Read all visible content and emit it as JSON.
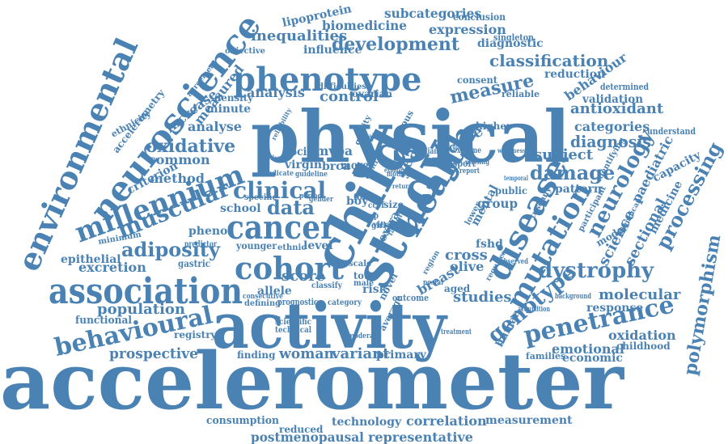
{
  "color": "#4a82b4",
  "words": [
    {
      "id": "accelerometer",
      "text": "accelerometer"
    },
    {
      "id": "activity",
      "text": "activity"
    },
    {
      "id": "physical",
      "text": "physical"
    },
    {
      "id": "phenotype",
      "text": "phenotype"
    },
    {
      "id": "association",
      "text": "association"
    },
    {
      "id": "child",
      "text": "child"
    },
    {
      "id": "study",
      "text": "study"
    },
    {
      "id": "neuroscience",
      "text": "neuroscience"
    },
    {
      "id": "environmental",
      "text": "environmental"
    },
    {
      "id": "cancer",
      "text": "cancer"
    },
    {
      "id": "cohort",
      "text": "cohort"
    },
    {
      "id": "health",
      "text": "health"
    },
    {
      "id": "disease",
      "text": "disease"
    },
    {
      "id": "mutation",
      "text": "mutation"
    },
    {
      "id": "millennium",
      "text": "millennium"
    },
    {
      "id": "behavioural",
      "text": "behavioural"
    },
    {
      "id": "penetrance",
      "text": "penetrance"
    },
    {
      "id": "clinical",
      "text": "clinical"
    },
    {
      "id": "muscular",
      "text": "muscular"
    },
    {
      "id": "adiposity",
      "text": "adiposity"
    },
    {
      "id": "genotype",
      "text": "genotype"
    },
    {
      "id": "dystrophy",
      "text": "dystrophy"
    },
    {
      "id": "damage",
      "text": "damage"
    },
    {
      "id": "neurology",
      "text": "neurology"
    },
    {
      "id": "processing",
      "text": "processing"
    },
    {
      "id": "polymorphism",
      "text": "polymorphism"
    },
    {
      "id": "oxidative",
      "text": "oxidative"
    },
    {
      "id": "development",
      "text": "development"
    },
    {
      "id": "classification",
      "text": "classification"
    },
    {
      "id": "measure",
      "text": "measure"
    },
    {
      "id": "data",
      "text": "data"
    },
    {
      "id": "population",
      "text": "population"
    },
    {
      "id": "variant",
      "text": "variant"
    },
    {
      "id": "woman",
      "text": "woman"
    },
    {
      "id": "molecular",
      "text": "molecular"
    },
    {
      "id": "prospective",
      "text": "prospective"
    },
    {
      "id": "score",
      "text": "score"
    },
    {
      "id": "subject",
      "text": "subject"
    },
    {
      "id": "diagnosis",
      "text": "diagnosis"
    },
    {
      "id": "antioxidant",
      "text": "antioxidant"
    },
    {
      "id": "control",
      "text": "control"
    },
    {
      "id": "analysis",
      "text": "analysis"
    },
    {
      "id": "inequalities",
      "text": "inequalities"
    },
    {
      "id": "biomedicine",
      "text": "biomedicine"
    },
    {
      "id": "expression",
      "text": "expression"
    },
    {
      "id": "subcategories",
      "text": "subcategories"
    },
    {
      "id": "lipoprotein",
      "text": "lipoprotein"
    },
    {
      "id": "conclusion",
      "text": "conclusion"
    },
    {
      "id": "diagnostic",
      "text": "diagnostic"
    },
    {
      "id": "singleton",
      "text": "singleton"
    },
    {
      "id": "influence",
      "text": "influence"
    },
    {
      "id": "objective",
      "text": "objective"
    },
    {
      "id": "reduction",
      "text": "reduction"
    },
    {
      "id": "behaviour",
      "text": "behaviour"
    },
    {
      "id": "validation",
      "text": "validation"
    },
    {
      "id": "determined",
      "text": "determined"
    },
    {
      "id": "categories",
      "text": "categories"
    },
    {
      "id": "understand",
      "text": "understand"
    },
    {
      "id": "paediatric",
      "text": "paediatric"
    },
    {
      "id": "capacity",
      "text": "capacity"
    },
    {
      "id": "sectional",
      "text": "sectional"
    },
    {
      "id": "science",
      "text": "science"
    },
    {
      "id": "medicine",
      "text": "medicine"
    },
    {
      "id": "response",
      "text": "response"
    },
    {
      "id": "oxidation",
      "text": "oxidation"
    },
    {
      "id": "childhood",
      "text": "childhood"
    },
    {
      "id": "emotional",
      "text": "emotional"
    },
    {
      "id": "economic",
      "text": "economic"
    },
    {
      "id": "families",
      "text": "families"
    },
    {
      "id": "measurement",
      "text": "measurement"
    },
    {
      "id": "correlation",
      "text": "correlation"
    },
    {
      "id": "technology",
      "text": "technology"
    },
    {
      "id": "postmenopausal",
      "text": "postmenopausal"
    },
    {
      "id": "representative",
      "text": "representative"
    },
    {
      "id": "consumption",
      "text": "consumption"
    },
    {
      "id": "reduced",
      "text": "reduced"
    },
    {
      "id": "primary",
      "text": "primary"
    },
    {
      "id": "studies",
      "text": "studies"
    },
    {
      "id": "breast",
      "text": "breast"
    },
    {
      "id": "cross",
      "text": "cross"
    },
    {
      "id": "olive",
      "text": "olive"
    },
    {
      "id": "aged",
      "text": "aged"
    },
    {
      "id": "risk",
      "text": "risk"
    },
    {
      "id": "school",
      "text": "school"
    },
    {
      "id": "phenol",
      "text": "phenol"
    },
    {
      "id": "common",
      "text": "common"
    },
    {
      "id": "method",
      "text": "method"
    },
    {
      "id": "criterion",
      "text": "criterion"
    },
    {
      "id": "analyse",
      "text": "analyse"
    },
    {
      "id": "increase",
      "text": "increase"
    },
    {
      "id": "measured",
      "text": "measured"
    },
    {
      "id": "minute",
      "text": "minute"
    },
    {
      "id": "density",
      "text": "density"
    },
    {
      "id": "excretion",
      "text": "excretion"
    },
    {
      "id": "epithelial",
      "text": "epithelial"
    },
    {
      "id": "functional",
      "text": "functional"
    },
    {
      "id": "registry",
      "text": "registry"
    },
    {
      "id": "finding",
      "text": "finding"
    },
    {
      "id": "allele",
      "text": "allele"
    },
    {
      "id": "mvpa",
      "text": "mvpa"
    },
    {
      "id": "social",
      "text": "social"
    },
    {
      "id": "virgin",
      "text": "virgin"
    },
    {
      "id": "brca",
      "text": "brca"
    },
    {
      "id": "fshd",
      "text": "fshd"
    },
    {
      "id": "public",
      "text": "public"
    },
    {
      "id": "pattern",
      "text": "pattern"
    },
    {
      "id": "group",
      "text": "group"
    },
    {
      "id": "active",
      "text": "active"
    },
    {
      "id": "year",
      "text": "year"
    },
    {
      "id": "mental",
      "text": "mental"
    },
    {
      "id": "level",
      "text": "level"
    },
    {
      "id": "younger",
      "text": "younger"
    },
    {
      "id": "ethnic",
      "text": "ethnic"
    },
    {
      "id": "higher",
      "text": "higher"
    },
    {
      "id": "consent",
      "text": "consent"
    },
    {
      "id": "reliable",
      "text": "reliable"
    },
    {
      "id": "ovarian",
      "text": "ovarian"
    },
    {
      "id": "difficulties",
      "text": "difficulties"
    },
    {
      "id": "ethnicity",
      "text": "ethnicity"
    },
    {
      "id": "accelerometry",
      "text": "accelerometry"
    },
    {
      "id": "agreement",
      "text": "agreement"
    },
    {
      "id": "human",
      "text": "human"
    },
    {
      "id": "model",
      "text": "model"
    },
    {
      "id": "minimum",
      "text": "minimum"
    },
    {
      "id": "gastric",
      "text": "gastric"
    },
    {
      "id": "predictor",
      "text": "predictor"
    },
    {
      "id": "prognostic",
      "text": "prognostic"
    },
    {
      "id": "defining",
      "text": "defining"
    },
    {
      "id": "scientific",
      "text": "scientific"
    },
    {
      "id": "technical",
      "text": "technical"
    },
    {
      "id": "category",
      "text": "category"
    },
    {
      "id": "moderate",
      "text": "moderate"
    },
    {
      "id": "treatment",
      "text": "treatment"
    },
    {
      "id": "outcome",
      "text": "outcome"
    },
    {
      "id": "average",
      "text": "average"
    },
    {
      "id": "novel",
      "text": "novel"
    },
    {
      "id": "total",
      "text": "total"
    },
    {
      "id": "male",
      "text": "male"
    },
    {
      "id": "boy",
      "text": "boy"
    },
    {
      "id": "more",
      "text": "more"
    },
    {
      "id": "size",
      "text": "size"
    },
    {
      "id": "gender",
      "text": "gender"
    },
    {
      "id": "specific",
      "text": "specific"
    },
    {
      "id": "food",
      "text": "food"
    },
    {
      "id": "scale",
      "text": "scale"
    },
    {
      "id": "vitro",
      "text": "vitro"
    },
    {
      "id": "extra",
      "text": "extra"
    },
    {
      "id": "vigorous",
      "text": "vigorous"
    },
    {
      "id": "quality",
      "text": "quality"
    },
    {
      "id": "sport",
      "text": "sport"
    },
    {
      "id": "median",
      "text": "median"
    },
    {
      "id": "extreme",
      "text": "extreme"
    },
    {
      "id": "weakness",
      "text": "weakness"
    },
    {
      "id": "guideline",
      "text": "guideline"
    },
    {
      "id": "indicate",
      "text": "indicate"
    },
    {
      "id": "reliability",
      "text": "reliability"
    },
    {
      "id": "excellent",
      "text": "excellent"
    },
    {
      "id": "tuscany",
      "text": "tuscany"
    },
    {
      "id": "identifying",
      "text": "identifying"
    },
    {
      "id": "participant",
      "text": "participant"
    },
    {
      "id": "significant",
      "text": "significant"
    },
    {
      "id": "acquisition",
      "text": "acquisition"
    },
    {
      "id": "background",
      "text": "background"
    },
    {
      "id": "requires",
      "text": "requires"
    },
    {
      "id": "observed",
      "text": "observed"
    },
    {
      "id": "ccef",
      "text": "ccef"
    },
    {
      "id": "gp",
      "text": "gp"
    },
    {
      "id": "girl",
      "text": "girl"
    },
    {
      "id": "count",
      "text": "count"
    },
    {
      "id": "period",
      "text": "period"
    },
    {
      "id": "lower",
      "text": "lower"
    },
    {
      "id": "factor",
      "text": "factor"
    },
    {
      "id": "postal",
      "text": "postal"
    },
    {
      "id": "region",
      "text": "region"
    },
    {
      "id": "classify",
      "text": "classify"
    },
    {
      "id": "consecutive",
      "text": "consecutive"
    },
    {
      "id": "mother",
      "text": "mother"
    },
    {
      "id": "examine",
      "text": "examine"
    },
    {
      "id": "evaluate",
      "text": "evaluate"
    },
    {
      "id": "report",
      "text": "report"
    },
    {
      "id": "temporal",
      "text": "temporal"
    },
    {
      "id": "spectrum",
      "text": "spectrum"
    },
    {
      "id": "missing",
      "text": "missing"
    },
    {
      "id": "return",
      "text": "return"
    },
    {
      "id": "central",
      "text": "central"
    }
  ]
}
